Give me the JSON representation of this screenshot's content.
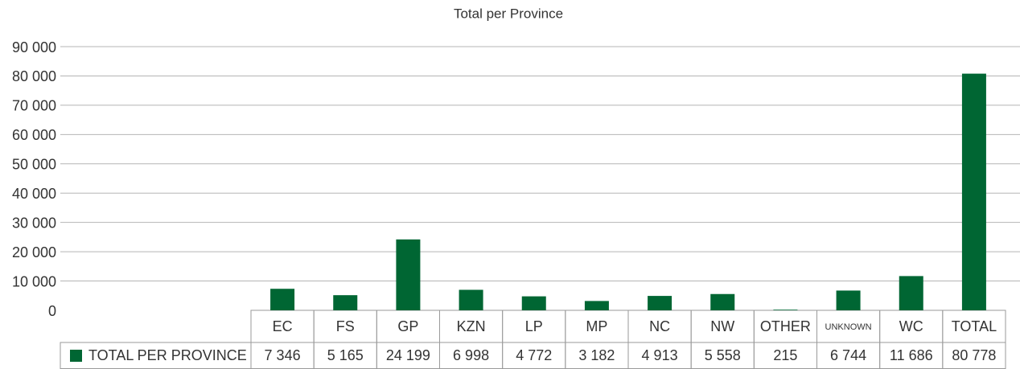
{
  "chart_data": {
    "type": "bar",
    "title": "Total per Province",
    "categories": [
      "EC",
      "FS",
      "GP",
      "KZN",
      "LP",
      "MP",
      "NC",
      "NW",
      "OTHER",
      "UNKNOWN",
      "WC",
      "TOTAL"
    ],
    "series": [
      {
        "name": "TOTAL PER PROVINCE",
        "color": "#006633",
        "values": [
          7346,
          5165,
          24199,
          6998,
          4772,
          3182,
          4913,
          5558,
          215,
          6744,
          11686,
          80778
        ],
        "value_labels": [
          "7 346",
          "5 165",
          "24 199",
          "6 998",
          "4 772",
          "3 182",
          "4 913",
          "5 558",
          "215",
          "6 744",
          "11 686",
          "80 778"
        ]
      }
    ],
    "ylim": [
      0,
      90000
    ],
    "yticks": [
      0,
      {
        "value": 10000,
        "label": "10 000"
      },
      {
        "value": 20000,
        "label": "20 000"
      },
      {
        "value": 30000,
        "label": "30 000"
      },
      {
        "value": 40000,
        "label": "40 000"
      },
      {
        "value": 50000,
        "label": "50 000"
      },
      {
        "value": 60000,
        "label": "60 000"
      },
      {
        "value": 70000,
        "label": "70 000"
      },
      {
        "value": 80000,
        "label": "80 000"
      },
      {
        "value": 90000,
        "label": "90 000"
      }
    ],
    "grid": true
  }
}
